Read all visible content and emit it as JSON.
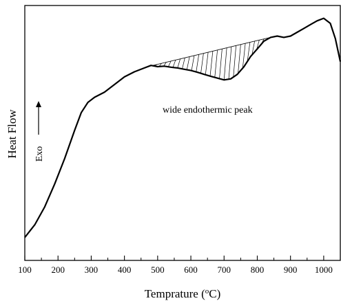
{
  "chart_data": {
    "type": "line",
    "title": "",
    "xlabel": "Temprature (",
    "xlabel_unit": "o",
    "xlabel_tail": "C)",
    "ylabel": "Heat Flow",
    "exo_label": "Exo",
    "xlim": [
      100,
      1050
    ],
    "x_ticks": [
      100,
      200,
      300,
      400,
      500,
      600,
      700,
      800,
      900,
      1000
    ],
    "y_ticks": [],
    "grid": false,
    "legend": "none",
    "annotations": [
      {
        "text": "wide endothermic peak",
        "x_from": 470,
        "x_to": 840
      }
    ],
    "series": [
      {
        "x": [
          100,
          130,
          160,
          190,
          220,
          250,
          270,
          290,
          310,
          340,
          370,
          400,
          430,
          460,
          480,
          500,
          520,
          540,
          560,
          580,
          600,
          620,
          640,
          660,
          680,
          700,
          720,
          740,
          760,
          780,
          800,
          820,
          840,
          860,
          880,
          900,
          920,
          940,
          960,
          980,
          1000,
          1020,
          1035,
          1050
        ],
        "y": [
          0.09,
          0.14,
          0.21,
          0.3,
          0.4,
          0.51,
          0.58,
          0.62,
          0.64,
          0.66,
          0.69,
          0.72,
          0.74,
          0.755,
          0.765,
          0.76,
          0.762,
          0.758,
          0.755,
          0.75,
          0.745,
          0.738,
          0.73,
          0.722,
          0.715,
          0.708,
          0.712,
          0.73,
          0.76,
          0.8,
          0.83,
          0.86,
          0.875,
          0.88,
          0.875,
          0.88,
          0.895,
          0.91,
          0.925,
          0.94,
          0.95,
          0.93,
          0.87,
          0.78
        ]
      }
    ]
  }
}
